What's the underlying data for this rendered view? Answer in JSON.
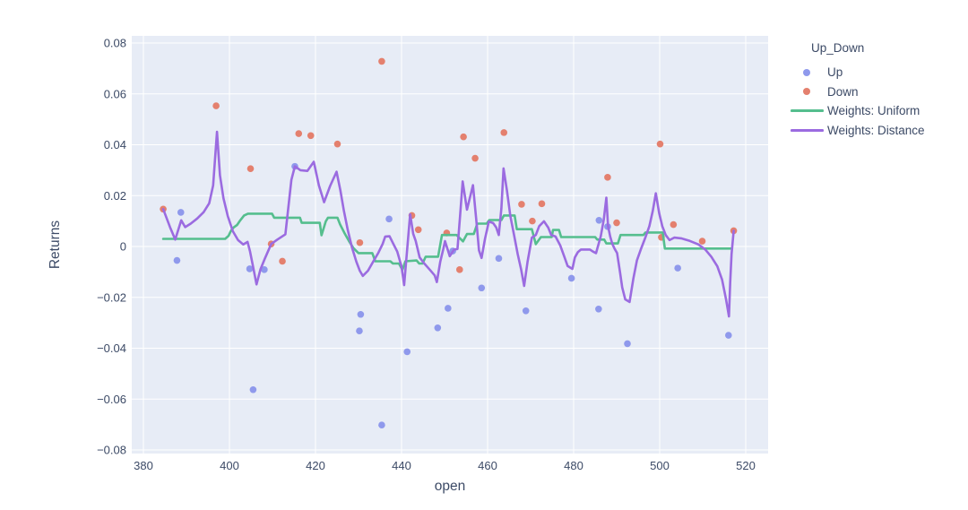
{
  "chart_data": {
    "type": "scatter",
    "title": "",
    "xlabel": "open",
    "ylabel": "Returns",
    "xlim": [
      377,
      525
    ],
    "ylim": [
      -0.082,
      0.083
    ],
    "grid": true,
    "legend_position": "right-top",
    "plot_bg": "#e7ecf6",
    "grid_color": "#ffffff",
    "text_color": "#3c4a66",
    "x_ticks": [
      380,
      400,
      420,
      440,
      460,
      480,
      500,
      520
    ],
    "x_tick_labels": [
      "380",
      "400",
      "420",
      "440",
      "460",
      "480",
      "500",
      "520"
    ],
    "y_ticks": [
      0.08,
      0.06,
      0.04,
      0.02,
      0,
      -0.02,
      -0.04,
      -0.06,
      -0.08
    ],
    "y_tick_labels": [
      "0.08",
      "0.06",
      "0.04",
      "0.02",
      "0",
      "−0.02",
      "−0.04",
      "−0.06",
      "−0.08"
    ],
    "legend": {
      "title": "Up_Down",
      "entries": [
        {
          "label": "Up",
          "marker": "dot",
          "color": "#8f99ec"
        },
        {
          "label": "Down",
          "marker": "dot",
          "color": "#e4806e"
        },
        {
          "label": "Weights: Uniform",
          "marker": "line",
          "color": "#55be8e"
        },
        {
          "label": "Weights: Distance",
          "marker": "line",
          "color": "#9b6be0"
        }
      ]
    },
    "series": [
      {
        "name": "Up",
        "type": "scatter",
        "color": "#8f99ec",
        "points": [
          [
            388.7,
            0.0134
          ],
          [
            387.8,
            -0.0055
          ],
          [
            404.7,
            -0.0088
          ],
          [
            405.5,
            -0.0563
          ],
          [
            408.1,
            -0.0091
          ],
          [
            415.2,
            0.0315
          ],
          [
            430.5,
            -0.0267
          ],
          [
            430.2,
            -0.0332
          ],
          [
            435.4,
            -0.0702
          ],
          [
            437.1,
            0.0108
          ],
          [
            441.3,
            -0.0414
          ],
          [
            448.4,
            -0.032
          ],
          [
            450.8,
            -0.0243
          ],
          [
            451.9,
            -0.0018
          ],
          [
            458.6,
            -0.0163
          ],
          [
            462.6,
            -0.0047
          ],
          [
            468.9,
            -0.0253
          ],
          [
            479.5,
            -0.0125
          ],
          [
            485.8,
            -0.0246
          ],
          [
            485.9,
            0.0103
          ],
          [
            487.9,
            0.0078
          ],
          [
            492.5,
            -0.0382
          ],
          [
            504.2,
            -0.0085
          ],
          [
            516,
            -0.0349
          ]
        ]
      },
      {
        "name": "Down",
        "type": "scatter",
        "color": "#e4806e",
        "points": [
          [
            384.6,
            0.0147
          ],
          [
            396.9,
            0.0553
          ],
          [
            404.9,
            0.0306
          ],
          [
            409.7,
            0.001
          ],
          [
            412.3,
            -0.0058
          ],
          [
            416.1,
            0.0444
          ],
          [
            418.9,
            0.0436
          ],
          [
            425.1,
            0.0403
          ],
          [
            430.3,
            0.0015
          ],
          [
            435.4,
            0.0728
          ],
          [
            442.4,
            0.0122
          ],
          [
            443.9,
            0.0066
          ],
          [
            450.5,
            0.0053
          ],
          [
            453.5,
            -0.0091
          ],
          [
            454.4,
            0.0431
          ],
          [
            457.1,
            0.0347
          ],
          [
            463.8,
            0.0448
          ],
          [
            467.9,
            0.0166
          ],
          [
            470.4,
            0.01
          ],
          [
            472.6,
            0.0168
          ],
          [
            487.9,
            0.0272
          ],
          [
            490,
            0.0093
          ],
          [
            500.1,
            0.0403
          ],
          [
            500.4,
            0.0036
          ],
          [
            503.2,
            0.0086
          ],
          [
            509.9,
            0.0021
          ],
          [
            517.2,
            0.0062
          ]
        ]
      },
      {
        "name": "Weights: Uniform",
        "type": "line",
        "color": "#55be8e",
        "points": [
          [
            384.6,
            0.003
          ],
          [
            399,
            0.003
          ],
          [
            399.8,
            0.0042
          ],
          [
            400.4,
            0.0063
          ],
          [
            401,
            0.0075
          ],
          [
            401.8,
            0.0085
          ],
          [
            402.4,
            0.01
          ],
          [
            403.4,
            0.0122
          ],
          [
            404.3,
            0.0129
          ],
          [
            409.9,
            0.0129
          ],
          [
            410.4,
            0.0113
          ],
          [
            416.4,
            0.0113
          ],
          [
            416.8,
            0.0093
          ],
          [
            421,
            0.0093
          ],
          [
            421.4,
            0.0044
          ],
          [
            422.4,
            0.0099
          ],
          [
            422.9,
            0.0113
          ],
          [
            425.1,
            0.0113
          ],
          [
            425.7,
            0.0087
          ],
          [
            426.8,
            0.0051
          ],
          [
            427.8,
            0.0021
          ],
          [
            428.8,
            -0.0006
          ],
          [
            430,
            -0.0026
          ],
          [
            433.2,
            -0.0026
          ],
          [
            433.9,
            -0.0058
          ],
          [
            437.4,
            -0.0058
          ],
          [
            438,
            -0.0067
          ],
          [
            439.4,
            -0.0067
          ],
          [
            440.2,
            -0.0092
          ],
          [
            440.9,
            -0.0058
          ],
          [
            443.5,
            -0.0055
          ],
          [
            444.1,
            -0.0067
          ],
          [
            444.9,
            -0.0067
          ],
          [
            445.6,
            -0.004
          ],
          [
            448.5,
            -0.004
          ],
          [
            449.4,
            0.0045
          ],
          [
            452.8,
            0.0045
          ],
          [
            454.3,
            0.002
          ],
          [
            455.2,
            0.0049
          ],
          [
            456.8,
            0.0049
          ],
          [
            457.6,
            0.009
          ],
          [
            459.8,
            0.009
          ],
          [
            460.4,
            0.0104
          ],
          [
            463.2,
            0.0104
          ],
          [
            463.8,
            0.0122
          ],
          [
            466.3,
            0.0122
          ],
          [
            466.8,
            0.0068
          ],
          [
            470.3,
            0.0068
          ],
          [
            471.2,
            0.0009
          ],
          [
            472.4,
            0.0037
          ],
          [
            474.9,
            0.0037
          ],
          [
            475.2,
            0.0065
          ],
          [
            476.6,
            0.0065
          ],
          [
            477.1,
            0.0037
          ],
          [
            485,
            0.0037
          ],
          [
            485.5,
            0.0027
          ],
          [
            487.1,
            0.0027
          ],
          [
            487.6,
            0.0012
          ],
          [
            490.3,
            0.0012
          ],
          [
            490.9,
            0.0045
          ],
          [
            496.2,
            0.0045
          ],
          [
            496.7,
            0.0055
          ],
          [
            500.7,
            0.0055
          ],
          [
            501.2,
            -0.0008
          ],
          [
            516.8,
            -0.0008
          ]
        ]
      },
      {
        "name": "Weights: Distance",
        "type": "line",
        "color": "#9b6be0",
        "points": [
          [
            384.6,
            0.0147
          ],
          [
            386.2,
            0.0075
          ],
          [
            387.4,
            0.0027
          ],
          [
            388.8,
            0.0103
          ],
          [
            389.7,
            0.0076
          ],
          [
            391,
            0.009
          ],
          [
            392.5,
            0.011
          ],
          [
            394,
            0.0135
          ],
          [
            395.3,
            0.017
          ],
          [
            396.2,
            0.024
          ],
          [
            397.1,
            0.0451
          ],
          [
            397.8,
            0.028
          ],
          [
            398.6,
            0.019
          ],
          [
            399.6,
            0.012
          ],
          [
            400.8,
            0.006
          ],
          [
            402,
            0.0025
          ],
          [
            403.2,
            0.0008
          ],
          [
            404.2,
            0.0018
          ],
          [
            404.8,
            -0.002
          ],
          [
            405.5,
            -0.008
          ],
          [
            406.3,
            -0.0149
          ],
          [
            407.2,
            -0.009
          ],
          [
            408.3,
            -0.0045
          ],
          [
            409.7,
            0.001
          ],
          [
            411.2,
            0.0028
          ],
          [
            413,
            0.0048
          ],
          [
            414.4,
            0.0262
          ],
          [
            415.2,
            0.0315
          ],
          [
            416.5,
            0.03
          ],
          [
            418.1,
            0.0297
          ],
          [
            419.6,
            0.0333
          ],
          [
            420.8,
            0.024
          ],
          [
            422,
            0.0174
          ],
          [
            423.4,
            0.0238
          ],
          [
            424.9,
            0.0294
          ],
          [
            425.8,
            0.022
          ],
          [
            426.6,
            0.014
          ],
          [
            427.5,
            0.0065
          ],
          [
            428.5,
            -0.0005
          ],
          [
            429.5,
            -0.006
          ],
          [
            430.3,
            -0.0095
          ],
          [
            431,
            -0.0116
          ],
          [
            432.2,
            -0.0095
          ],
          [
            433.4,
            -0.006
          ],
          [
            434.6,
            -0.0025
          ],
          [
            435.6,
            0.001
          ],
          [
            436.2,
            0.0039
          ],
          [
            437.2,
            0.004
          ],
          [
            438.1,
            0.001
          ],
          [
            439,
            -0.002
          ],
          [
            440,
            -0.0079
          ],
          [
            440.6,
            -0.0152
          ],
          [
            441.5,
            0.0027
          ],
          [
            442,
            0.0127
          ],
          [
            442.7,
            0.005
          ],
          [
            443.3,
            0.0022
          ],
          [
            444.2,
            -0.0043
          ],
          [
            445.3,
            -0.0067
          ],
          [
            446.7,
            -0.0094
          ],
          [
            447.7,
            -0.0114
          ],
          [
            448.2,
            -0.014
          ],
          [
            449,
            -0.006
          ],
          [
            449.7,
            -0.001
          ],
          [
            450.1,
            0.0021
          ],
          [
            451.2,
            -0.0038
          ],
          [
            452.2,
            -0.0012
          ],
          [
            453,
            -0.001
          ],
          [
            453.6,
            0.012
          ],
          [
            454.2,
            0.0256
          ],
          [
            455.2,
            0.0145
          ],
          [
            456.6,
            0.0241
          ],
          [
            457.4,
            0.01
          ],
          [
            458,
            -0.0015
          ],
          [
            458.6,
            -0.0045
          ],
          [
            459.4,
            0.003
          ],
          [
            460.3,
            0.0098
          ],
          [
            461.3,
            0.0092
          ],
          [
            462,
            0.0075
          ],
          [
            462.6,
            0.0045
          ],
          [
            463.2,
            0.015
          ],
          [
            463.7,
            0.0307
          ],
          [
            464.5,
            0.022
          ],
          [
            465.3,
            0.012
          ],
          [
            466.2,
            0.004
          ],
          [
            467,
            -0.003
          ],
          [
            467.8,
            -0.009
          ],
          [
            468.5,
            -0.0155
          ],
          [
            469.3,
            -0.006
          ],
          [
            470.3,
            0.0035
          ],
          [
            471.2,
            0.0045
          ],
          [
            472,
            0.008
          ],
          [
            473.1,
            0.0099
          ],
          [
            474.1,
            0.0074
          ],
          [
            474.8,
            0.0045
          ],
          [
            475.8,
            0.0039
          ],
          [
            476.9,
            0.0004
          ],
          [
            477.9,
            -0.0043
          ],
          [
            478.6,
            -0.0077
          ],
          [
            479.7,
            -0.0088
          ],
          [
            480.3,
            -0.0043
          ],
          [
            481,
            -0.0022
          ],
          [
            481.7,
            -0.0012
          ],
          [
            483.8,
            -0.0012
          ],
          [
            484.5,
            -0.002
          ],
          [
            485.2,
            -0.0026
          ],
          [
            486.3,
            0.0039
          ],
          [
            487,
            0.0105
          ],
          [
            487.6,
            0.0192
          ],
          [
            488,
            0.008
          ],
          [
            488.5,
            0.0039
          ],
          [
            489,
            0.001
          ],
          [
            489.5,
            -0.0008
          ],
          [
            490.1,
            -0.0026
          ],
          [
            490.8,
            -0.0102
          ],
          [
            491.3,
            -0.0161
          ],
          [
            492,
            -0.0208
          ],
          [
            493,
            -0.0218
          ],
          [
            493.9,
            -0.0125
          ],
          [
            494.7,
            -0.0055
          ],
          [
            495.6,
            -0.0012
          ],
          [
            496.6,
            0.0032
          ],
          [
            497.6,
            0.008
          ],
          [
            498.4,
            0.014
          ],
          [
            499.1,
            0.0209
          ],
          [
            499.9,
            0.013
          ],
          [
            500.6,
            0.008
          ],
          [
            501.4,
            0.0045
          ],
          [
            502.3,
            0.0025
          ],
          [
            503.4,
            0.0035
          ],
          [
            505,
            0.0032
          ],
          [
            507,
            0.0022
          ],
          [
            509,
            0.0008
          ],
          [
            510.6,
            -0.0012
          ],
          [
            512,
            -0.004
          ],
          [
            513.4,
            -0.0078
          ],
          [
            514.5,
            -0.013
          ],
          [
            515.4,
            -0.0205
          ],
          [
            516.1,
            -0.0275
          ],
          [
            516.4,
            -0.014
          ],
          [
            516.7,
            -0.003
          ],
          [
            517.2,
            0.0062
          ]
        ]
      }
    ]
  }
}
